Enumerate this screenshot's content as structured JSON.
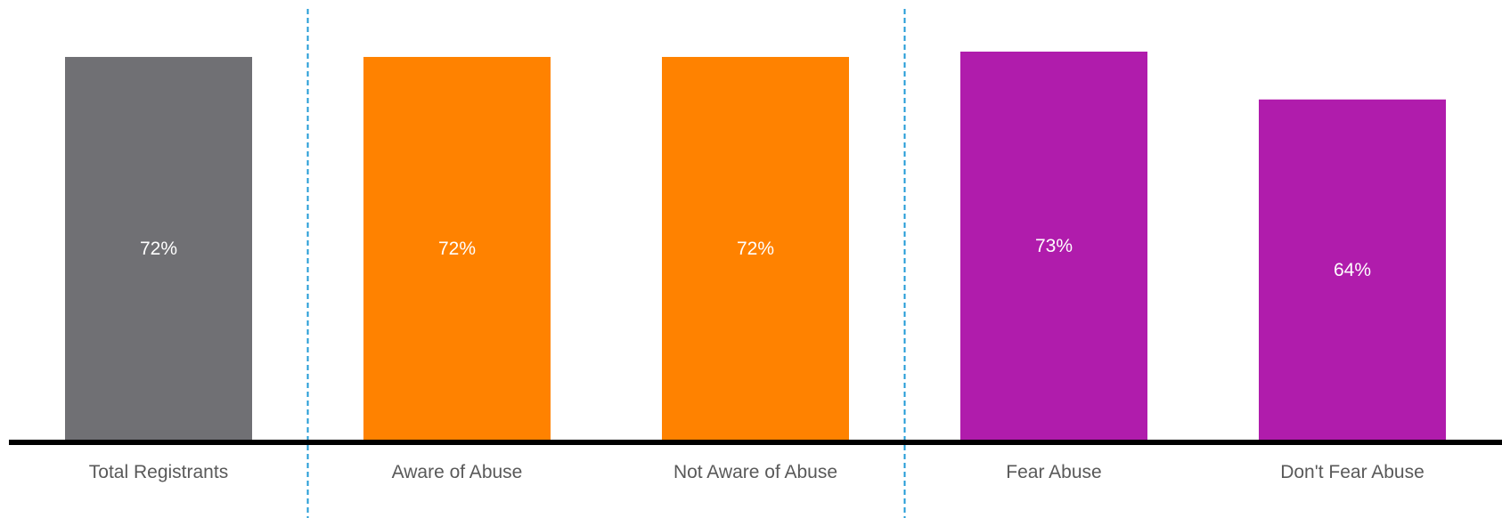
{
  "chart_data": {
    "type": "bar",
    "title": "",
    "xlabel": "",
    "ylabel": "",
    "ylim": [
      0,
      73
    ],
    "categories": [
      "Total Registrants",
      "Aware of Abuse",
      "Not Aware of Abuse",
      "Fear Abuse",
      "Don't Fear Abuse"
    ],
    "values": [
      72,
      72,
      72,
      73,
      64
    ],
    "data_labels": [
      "72%",
      "72%",
      "72%",
      "73%",
      "64%"
    ],
    "colors": [
      "#707074",
      "#ff8200",
      "#ff8200",
      "#b01cac",
      "#b01cac"
    ],
    "group_separators_after": [
      0,
      2
    ],
    "separator_color": "#1f9ad6",
    "axis_color": "#000000",
    "grid": false,
    "legend": "none"
  }
}
